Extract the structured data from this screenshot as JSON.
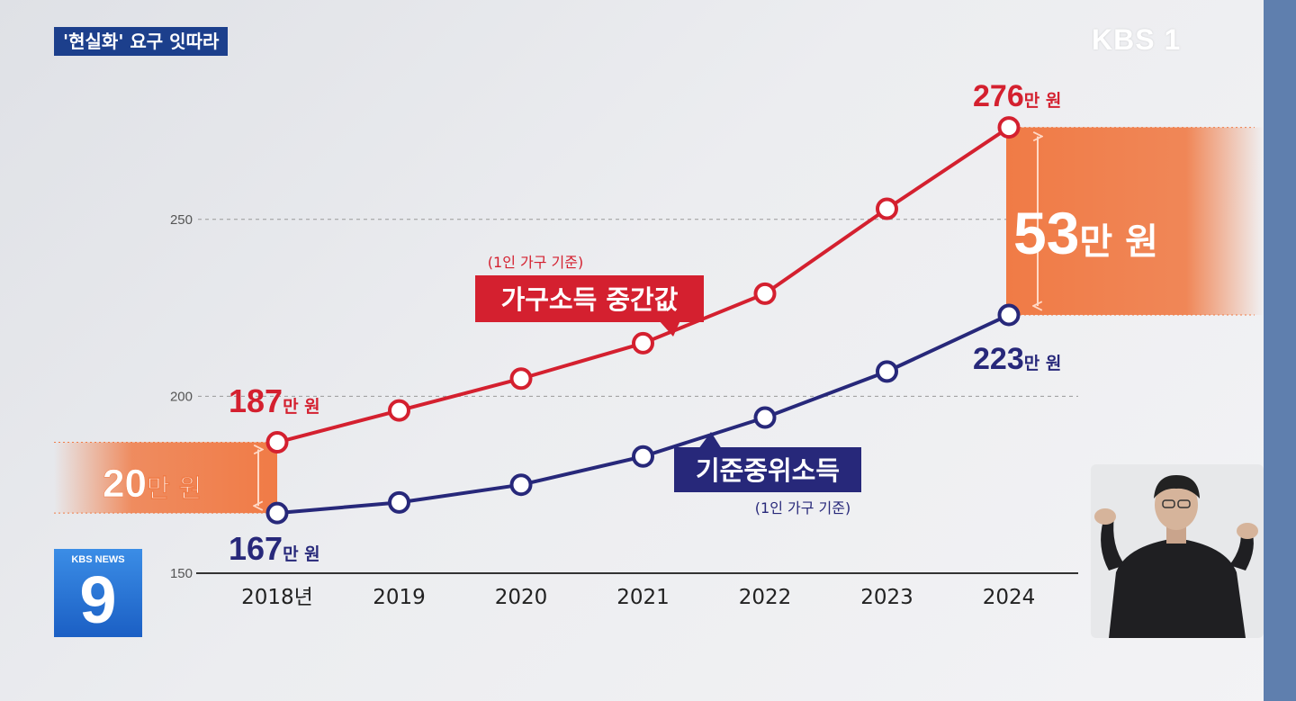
{
  "headline": "'현실화' 요구 잇따라",
  "channel": "KBS 1",
  "news_logo": {
    "label": "KBS NEWS",
    "number": "9"
  },
  "colors": {
    "red": "#d4202f",
    "blue": "#27287a",
    "orange": "#f07b46",
    "headline_bg": "#1c3f8c"
  },
  "chart_data": {
    "type": "line",
    "categories": [
      "2018년",
      "2019",
      "2020",
      "2021",
      "2022",
      "2023",
      "2024"
    ],
    "y_ticks": [
      150,
      200,
      250
    ],
    "ylim": [
      150,
      285
    ],
    "grid": true,
    "series": [
      {
        "name": "가구소득 중간값",
        "note": "(1인 가구 기준)",
        "color": "#d4202f",
        "values": [
          187,
          196,
          205,
          215,
          229,
          253,
          276
        ]
      },
      {
        "name": "기준중위소득",
        "note": "(1인 가구 기준)",
        "color": "#27287a",
        "values": [
          167,
          170,
          175,
          183,
          194,
          207,
          223
        ]
      }
    ],
    "annotations": {
      "start_red": "187만 원",
      "start_blue": "167만 원",
      "end_red": "276만 원",
      "end_blue": "223만 원",
      "gap_start": "20만 원",
      "gap_end": "53만 원"
    }
  }
}
